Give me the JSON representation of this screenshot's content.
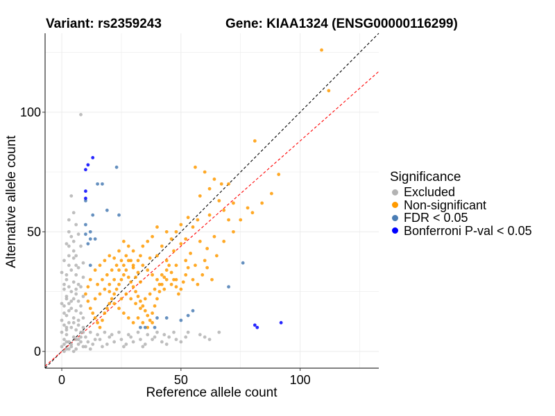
{
  "titles": {
    "variant": "Variant: rs2359243",
    "gene": "Gene: KIAA1324 (ENSG00000116299)"
  },
  "legend": {
    "title": "Significance",
    "items": [
      {
        "label": "Excluded",
        "color": "#b3b3b3"
      },
      {
        "label": "Non-significant",
        "color": "#ff9a00"
      },
      {
        "label": "FDR < 0.05",
        "color": "#4a7db4"
      },
      {
        "label": "Bonferroni P-val < 0.05",
        "color": "#0000ff"
      }
    ]
  },
  "chart_data": {
    "type": "scatter",
    "xlabel": "Reference allele count",
    "ylabel": "Alternative allele count",
    "xlim": [
      -7,
      133
    ],
    "ylim": [
      -7,
      133
    ],
    "xticks": [
      0,
      50,
      100
    ],
    "yticks": [
      0,
      50,
      100
    ],
    "grid": true,
    "reference_lines": [
      {
        "slope": 1.0,
        "intercept": 0,
        "color": "#000000",
        "style": "dashed"
      },
      {
        "slope": 0.88,
        "intercept": 0,
        "color": "#ff0000",
        "style": "dashed"
      }
    ],
    "series": [
      {
        "name": "Excluded",
        "color": "#b3b3b3",
        "points": [
          [
            8,
            99
          ],
          [
            4,
            65
          ],
          [
            5,
            58
          ],
          [
            3,
            55
          ],
          [
            6,
            53
          ],
          [
            3,
            50
          ],
          [
            2,
            45
          ],
          [
            5,
            42
          ],
          [
            6,
            40
          ],
          [
            1,
            38
          ],
          [
            3,
            36
          ],
          [
            4,
            34
          ],
          [
            6,
            32
          ],
          [
            2,
            30
          ],
          [
            5,
            29
          ],
          [
            7,
            28
          ],
          [
            3,
            27
          ],
          [
            1,
            26
          ],
          [
            4,
            25
          ],
          [
            6,
            24
          ],
          [
            2,
            23
          ],
          [
            5,
            22
          ],
          [
            7,
            21
          ],
          [
            3,
            20
          ],
          [
            1,
            19
          ],
          [
            4,
            18
          ],
          [
            6,
            17
          ],
          [
            8,
            16
          ],
          [
            2,
            15
          ],
          [
            5,
            14
          ],
          [
            7,
            13
          ],
          [
            3,
            12
          ],
          [
            1,
            11
          ],
          [
            4,
            10
          ],
          [
            6,
            9
          ],
          [
            8,
            8
          ],
          [
            2,
            7
          ],
          [
            5,
            6
          ],
          [
            7,
            5
          ],
          [
            3,
            4
          ],
          [
            1,
            3
          ],
          [
            4,
            2
          ],
          [
            6,
            1
          ],
          [
            2,
            1
          ],
          [
            0,
            2
          ],
          [
            1,
            5
          ],
          [
            0,
            8
          ],
          [
            2,
            10
          ],
          [
            0,
            13
          ],
          [
            1,
            16
          ],
          [
            0,
            20
          ],
          [
            2,
            22
          ],
          [
            1,
            28
          ],
          [
            0,
            33
          ],
          [
            3,
            40
          ],
          [
            5,
            46
          ],
          [
            7,
            49
          ],
          [
            8,
            44
          ],
          [
            9,
            37
          ],
          [
            9,
            31
          ],
          [
            8,
            27
          ],
          [
            9,
            23
          ],
          [
            8,
            19
          ],
          [
            9,
            14
          ],
          [
            9,
            10
          ],
          [
            8,
            4
          ],
          [
            9,
            2
          ],
          [
            10,
            6
          ],
          [
            11,
            4
          ],
          [
            12,
            8
          ],
          [
            13,
            3
          ],
          [
            15,
            7
          ],
          [
            16,
            5
          ],
          [
            18,
            8
          ],
          [
            19,
            3
          ],
          [
            20,
            6
          ],
          [
            22,
            4
          ],
          [
            24,
            8
          ],
          [
            25,
            5
          ],
          [
            27,
            3
          ],
          [
            28,
            7
          ],
          [
            30,
            4
          ],
          [
            32,
            8
          ],
          [
            33,
            5
          ],
          [
            35,
            3
          ],
          [
            36,
            7
          ],
          [
            38,
            5
          ],
          [
            40,
            8
          ],
          [
            42,
            4
          ],
          [
            43,
            7
          ],
          [
            45,
            6
          ],
          [
            47,
            8
          ],
          [
            48,
            5
          ],
          [
            50,
            4
          ],
          [
            52,
            6
          ],
          [
            53,
            8
          ],
          [
            58,
            7
          ],
          [
            60,
            6
          ],
          [
            62,
            5
          ],
          [
            66,
            8
          ],
          [
            4,
            48
          ],
          [
            6,
            36
          ],
          [
            3,
            44
          ],
          [
            5,
            39
          ],
          [
            7,
            35
          ],
          [
            2,
            32
          ],
          [
            6,
            26
          ],
          [
            4,
            21
          ],
          [
            3,
            17
          ],
          [
            7,
            11
          ],
          [
            5,
            12
          ],
          [
            2,
            9
          ],
          [
            6,
            5
          ],
          [
            4,
            3
          ],
          [
            3,
            1
          ],
          [
            5,
            0
          ],
          [
            1,
            0
          ],
          [
            2,
            4
          ],
          [
            7,
            3
          ],
          [
            8,
            6
          ],
          [
            9,
            8
          ],
          [
            10,
            2
          ],
          [
            12,
            1
          ],
          [
            14,
            5
          ],
          [
            17,
            2
          ],
          [
            21,
            7
          ],
          [
            26,
            2
          ],
          [
            29,
            6
          ],
          [
            34,
            2
          ],
          [
            39,
            6
          ],
          [
            44,
            3
          ]
        ]
      },
      {
        "name": "Non-significant",
        "color": "#ff9a00",
        "points": [
          [
            109,
            126
          ],
          [
            112,
            109
          ],
          [
            81,
            88
          ],
          [
            91,
            74
          ],
          [
            56,
            77
          ],
          [
            60,
            75
          ],
          [
            64,
            72
          ],
          [
            67,
            70
          ],
          [
            70,
            70
          ],
          [
            62,
            68
          ],
          [
            58,
            65
          ],
          [
            66,
            63
          ],
          [
            72,
            62
          ],
          [
            68,
            59
          ],
          [
            62,
            57
          ],
          [
            57,
            55
          ],
          [
            53,
            56
          ],
          [
            50,
            53
          ],
          [
            55,
            52
          ],
          [
            48,
            50
          ],
          [
            52,
            47
          ],
          [
            46,
            47
          ],
          [
            44,
            50
          ],
          [
            40,
            52
          ],
          [
            38,
            48
          ],
          [
            36,
            46
          ],
          [
            34,
            44
          ],
          [
            42,
            44
          ],
          [
            47,
            42
          ],
          [
            50,
            45
          ],
          [
            54,
            41
          ],
          [
            58,
            46
          ],
          [
            61,
            43
          ],
          [
            64,
            48
          ],
          [
            60,
            38
          ],
          [
            56,
            36
          ],
          [
            52,
            38
          ],
          [
            48,
            36
          ],
          [
            44,
            38
          ],
          [
            40,
            40
          ],
          [
            37,
            39
          ],
          [
            33,
            40
          ],
          [
            30,
            42
          ],
          [
            28,
            44
          ],
          [
            26,
            46
          ],
          [
            24,
            42
          ],
          [
            22,
            39
          ],
          [
            20,
            40
          ],
          [
            18,
            38
          ],
          [
            16,
            36
          ],
          [
            14,
            34
          ],
          [
            12,
            30
          ],
          [
            11,
            27
          ],
          [
            10,
            24
          ],
          [
            11,
            21
          ],
          [
            12,
            18
          ],
          [
            13,
            16
          ],
          [
            14,
            14
          ],
          [
            15,
            12
          ],
          [
            16,
            10
          ],
          [
            17,
            13
          ],
          [
            18,
            16
          ],
          [
            19,
            18
          ],
          [
            20,
            20
          ],
          [
            21,
            22
          ],
          [
            22,
            24
          ],
          [
            23,
            26
          ],
          [
            24,
            28
          ],
          [
            25,
            30
          ],
          [
            26,
            32
          ],
          [
            27,
            34
          ],
          [
            28,
            31
          ],
          [
            29,
            29
          ],
          [
            30,
            27
          ],
          [
            31,
            25
          ],
          [
            32,
            23
          ],
          [
            33,
            21
          ],
          [
            34,
            19
          ],
          [
            35,
            17
          ],
          [
            36,
            15
          ],
          [
            37,
            13
          ],
          [
            38,
            16
          ],
          [
            39,
            19
          ],
          [
            40,
            22
          ],
          [
            41,
            25
          ],
          [
            42,
            28
          ],
          [
            43,
            31
          ],
          [
            44,
            34
          ],
          [
            45,
            36
          ],
          [
            46,
            33
          ],
          [
            47,
            30
          ],
          [
            48,
            27
          ],
          [
            49,
            24
          ],
          [
            50,
            26
          ],
          [
            51,
            29
          ],
          [
            52,
            32
          ],
          [
            53,
            35
          ],
          [
            55,
            30
          ],
          [
            57,
            28
          ],
          [
            59,
            32
          ],
          [
            61,
            35
          ],
          [
            63,
            30
          ],
          [
            65,
            40
          ],
          [
            68,
            46
          ],
          [
            70,
            55
          ],
          [
            72,
            50
          ],
          [
            75,
            55
          ],
          [
            78,
            60
          ],
          [
            80,
            58
          ],
          [
            84,
            62
          ],
          [
            88,
            66
          ],
          [
            30,
            35
          ],
          [
            32,
            38
          ],
          [
            34,
            36
          ],
          [
            36,
            34
          ],
          [
            38,
            32
          ],
          [
            40,
            30
          ],
          [
            42,
            32
          ],
          [
            44,
            30
          ],
          [
            46,
            28
          ],
          [
            48,
            30
          ],
          [
            25,
            22
          ],
          [
            27,
            24
          ],
          [
            29,
            22
          ],
          [
            31,
            20
          ],
          [
            33,
            18
          ],
          [
            35,
            22
          ],
          [
            37,
            24
          ],
          [
            39,
            26
          ],
          [
            41,
            28
          ],
          [
            43,
            26
          ],
          [
            20,
            25
          ],
          [
            22,
            20
          ],
          [
            24,
            18
          ],
          [
            26,
            16
          ],
          [
            28,
            14
          ],
          [
            30,
            12
          ],
          [
            32,
            14
          ],
          [
            34,
            12
          ],
          [
            36,
            10
          ],
          [
            38,
            12
          ],
          [
            14,
            22
          ],
          [
            16,
            24
          ],
          [
            18,
            26
          ],
          [
            20,
            28
          ],
          [
            22,
            30
          ],
          [
            24,
            34
          ],
          [
            26,
            36
          ],
          [
            28,
            38
          ],
          [
            30,
            36
          ],
          [
            32,
            33
          ],
          [
            15,
            28
          ],
          [
            17,
            30
          ],
          [
            19,
            32
          ],
          [
            21,
            34
          ],
          [
            23,
            36
          ],
          [
            25,
            38
          ],
          [
            27,
            40
          ],
          [
            29,
            38
          ],
          [
            31,
            31
          ],
          [
            33,
            29
          ]
        ]
      },
      {
        "name": "FDR < 0.05",
        "color": "#4a7db4",
        "points": [
          [
            23,
            77
          ],
          [
            15,
            70
          ],
          [
            17,
            70
          ],
          [
            10,
            63
          ],
          [
            19,
            59
          ],
          [
            13,
            57
          ],
          [
            24,
            57
          ],
          [
            10,
            53
          ],
          [
            12,
            50
          ],
          [
            10,
            49
          ],
          [
            12,
            47
          ],
          [
            14,
            47
          ],
          [
            11,
            45
          ],
          [
            12,
            36
          ],
          [
            76,
            37
          ],
          [
            70,
            27
          ],
          [
            55,
            17
          ],
          [
            53,
            15
          ],
          [
            50,
            13
          ],
          [
            40,
            14
          ],
          [
            44,
            14
          ],
          [
            39,
            10
          ],
          [
            35,
            10
          ],
          [
            33,
            10
          ]
        ]
      },
      {
        "name": "Bonferroni P-val < 0.05",
        "color": "#0000ff",
        "points": [
          [
            13,
            81
          ],
          [
            11,
            78
          ],
          [
            10,
            76
          ],
          [
            10,
            67
          ],
          [
            10,
            64
          ],
          [
            92,
            12
          ],
          [
            81,
            11
          ],
          [
            82,
            10
          ]
        ]
      }
    ]
  }
}
